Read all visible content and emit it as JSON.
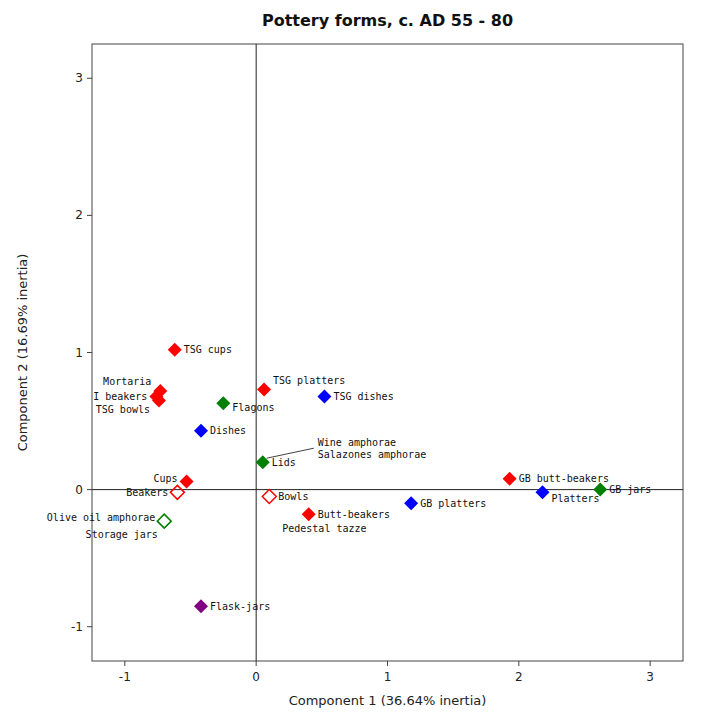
{
  "chart_data": {
    "type": "scatter",
    "title": "Pottery forms, c. AD 55 - 80",
    "x_label": "Component 1 (36.64% inertia)",
    "y_label": "Component 2 (16.69% inertia)",
    "xlim": [
      -1.25,
      3.25
    ],
    "ylim": [
      -1.25,
      3.25
    ],
    "xticks": [
      -1,
      0,
      1,
      2,
      3
    ],
    "yticks": [
      -1,
      0,
      1,
      2,
      3
    ],
    "grid": false,
    "labels": [
      "TSG cups",
      "TSG platters",
      "TSG dishes",
      "Mortaria",
      "I beakers",
      "TSG bowls",
      "Flagons",
      "Dishes",
      "Lids",
      "Cups",
      "Beakers",
      "Bowls",
      "GB butt-beakers",
      "GB platters",
      "Platters",
      "GB jars",
      "Olive oil amphorae",
      "Storage jars",
      "Butt-beakers",
      "Pedestal tazze",
      "Flask-jars"
    ],
    "x": [
      -0.62,
      0.06,
      0.52,
      -0.73,
      -0.76,
      -0.74,
      -0.25,
      -0.42,
      0.05,
      -0.53,
      -0.6,
      0.1,
      1.93,
      1.18,
      2.18,
      2.62,
      -0.7,
      -0.68,
      0.4,
      0.13,
      -0.42
    ],
    "values": [
      1.02,
      0.73,
      0.68,
      0.72,
      0.68,
      0.65,
      0.63,
      0.43,
      0.2,
      0.06,
      -0.02,
      -0.05,
      0.08,
      -0.1,
      -0.02,
      0.0,
      -0.23,
      -0.3,
      -0.18,
      -0.22,
      -0.85
    ],
    "colors": [
      "#ff0000",
      "#ff0000",
      "#0000ff",
      "#ff0000",
      "#ff0000",
      "#ff0000",
      "#008000",
      "#0000ff",
      "#008000",
      "#ff0000",
      "#ff0000",
      "#ff0000",
      "#ff0000",
      "#0000ff",
      "#0000ff",
      "#008000",
      "#008000",
      "#008000",
      "#ff0000",
      "#ff0000",
      "#800080"
    ],
    "markers": [
      "diamond",
      "diamond",
      "diamond",
      "diamond",
      "diamond",
      "diamond",
      "diamond",
      "diamond",
      "diamond",
      "diamond",
      "diamond-open",
      "diamond-open",
      "diamond",
      "diamond",
      "diamond",
      "diamond",
      "diamond-open",
      "none",
      "diamond",
      "none",
      "diamond"
    ],
    "annotations": [
      "Wine amphorae",
      "Salazones amphorae"
    ]
  }
}
